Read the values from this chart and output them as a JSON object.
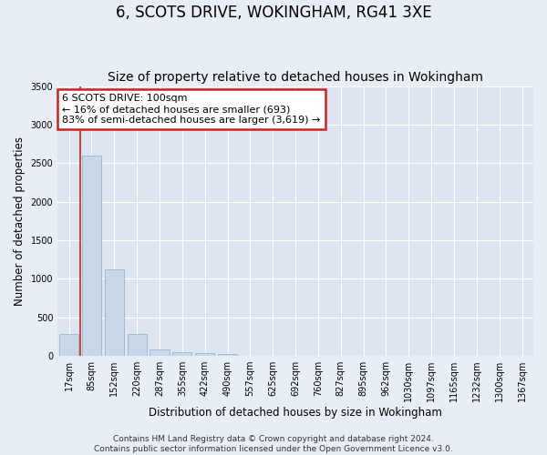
{
  "title": "6, SCOTS DRIVE, WOKINGHAM, RG41 3XE",
  "subtitle": "Size of property relative to detached houses in Wokingham",
  "xlabel": "Distribution of detached houses by size in Wokingham",
  "ylabel": "Number of detached properties",
  "bar_labels": [
    "17sqm",
    "85sqm",
    "152sqm",
    "220sqm",
    "287sqm",
    "355sqm",
    "422sqm",
    "490sqm",
    "557sqm",
    "625sqm",
    "692sqm",
    "760sqm",
    "827sqm",
    "895sqm",
    "962sqm",
    "1030sqm",
    "1097sqm",
    "1165sqm",
    "1232sqm",
    "1300sqm",
    "1367sqm"
  ],
  "bar_values": [
    280,
    2600,
    1120,
    285,
    80,
    50,
    35,
    30,
    0,
    0,
    0,
    0,
    0,
    0,
    0,
    0,
    0,
    0,
    0,
    0,
    0
  ],
  "bar_color": "#c8d8ea",
  "bar_edge_color": "#9ab4cc",
  "vline_x": 0.5,
  "vline_color": "#cc2222",
  "annotation_text": "6 SCOTS DRIVE: 100sqm\n← 16% of detached houses are smaller (693)\n83% of semi-detached houses are larger (3,619) →",
  "annotation_box_facecolor": "#ffffff",
  "annotation_border_color": "#cc2222",
  "ylim": [
    0,
    3500
  ],
  "yticks": [
    0,
    500,
    1000,
    1500,
    2000,
    2500,
    3000,
    3500
  ],
  "footer_line1": "Contains HM Land Registry data © Crown copyright and database right 2024.",
  "footer_line2": "Contains public sector information licensed under the Open Government Licence v3.0.",
  "fig_facecolor": "#e8eef5",
  "plot_facecolor": "#dde6f0",
  "grid_color": "#ffffff",
  "title_fontsize": 12,
  "subtitle_fontsize": 10,
  "axis_label_fontsize": 8.5,
  "tick_fontsize": 7,
  "annotation_fontsize": 8,
  "footer_fontsize": 6.5
}
